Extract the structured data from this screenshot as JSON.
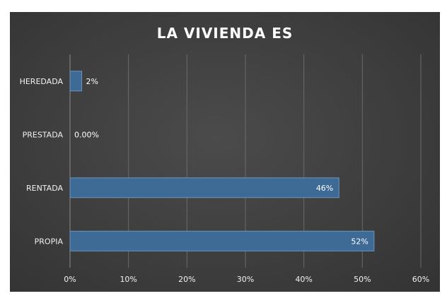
{
  "chart_data": {
    "type": "bar",
    "orientation": "horizontal",
    "title": "LA VIVIENDA ES",
    "xlabel": "",
    "ylabel": "",
    "categories": [
      "HEREDADA",
      "PRESTADA",
      "RENTADA",
      "PROPIA"
    ],
    "values": [
      2,
      0,
      46,
      52
    ],
    "data_labels": [
      "2%",
      "0.00%",
      "46%",
      "52%"
    ],
    "xlim": [
      0,
      60
    ],
    "x_ticks": [
      0,
      10,
      20,
      30,
      40,
      50,
      60
    ],
    "x_tick_labels": [
      "0%",
      "10%",
      "20%",
      "30%",
      "40%",
      "50%",
      "60%"
    ],
    "grid": true,
    "legend": "none",
    "colors": {
      "bar": "#3e6a96",
      "bar_edge": "#6d93ba",
      "background": "#404040",
      "grid": "#6a6a6a",
      "text": "#f2f2f2"
    }
  }
}
